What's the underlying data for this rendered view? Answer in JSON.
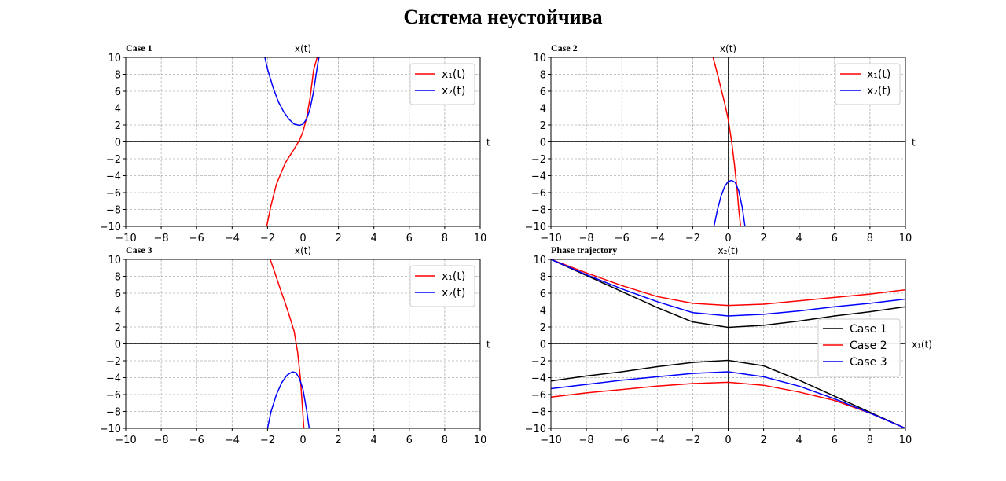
{
  "suptitle": "Система неустойчива",
  "chart_data": [
    {
      "type": "line",
      "title": "Case 1",
      "xlabel": "t",
      "ylabel": "x(t)",
      "xlim": [
        -10,
        10
      ],
      "ylim": [
        -10,
        10
      ],
      "xticks": [
        "−10",
        "−8",
        "−6",
        "−4",
        "−2",
        "0",
        "2",
        "4",
        "6",
        "8",
        "10"
      ],
      "yticks": [
        "−10",
        "−8",
        "−6",
        "−4",
        "−2",
        "0",
        "2",
        "4",
        "6",
        "8",
        "10"
      ],
      "grid": true,
      "legend_position": "top-right",
      "series": [
        {
          "name": "x₁(t)",
          "color": "#ff0000",
          "x": [
            -2.05,
            -1.8,
            -1.5,
            -1.2,
            -1.0,
            -0.8,
            -0.6,
            -0.4,
            -0.2,
            0,
            0.2,
            0.4,
            0.6,
            0.8
          ],
          "y": [
            -10,
            -7.5,
            -5.0,
            -3.5,
            -2.5,
            -1.8,
            -1.2,
            -0.5,
            0.2,
            1.2,
            2.8,
            5.2,
            8.5,
            10
          ]
        },
        {
          "name": "x₂(t)",
          "color": "#0000ff",
          "x": [
            -2.15,
            -2.0,
            -1.7,
            -1.4,
            -1.1,
            -0.8,
            -0.5,
            -0.2,
            0,
            0.2,
            0.4,
            0.6,
            0.8,
            0.9
          ],
          "y": [
            10,
            8.6,
            6.5,
            4.8,
            3.6,
            2.7,
            2.1,
            1.95,
            2.1,
            2.7,
            3.9,
            6.0,
            8.8,
            10
          ]
        }
      ]
    },
    {
      "type": "line",
      "title": "Case 2",
      "xlabel": "t",
      "ylabel": "x(t)",
      "xlim": [
        -10,
        10
      ],
      "ylim": [
        -10,
        10
      ],
      "xticks": [
        "−10",
        "−8",
        "−6",
        "−4",
        "−2",
        "0",
        "2",
        "4",
        "6",
        "8",
        "10"
      ],
      "yticks": [
        "−10",
        "−8",
        "−6",
        "−4",
        "−2",
        "0",
        "2",
        "4",
        "6",
        "8",
        "10"
      ],
      "grid": true,
      "legend_position": "top-right",
      "series": [
        {
          "name": "x₁(t)",
          "color": "#ff0000",
          "x": [
            -0.85,
            -0.6,
            -0.4,
            -0.2,
            0,
            0.2,
            0.35,
            0.5,
            0.6,
            0.7
          ],
          "y": [
            10,
            8.0,
            6.3,
            4.6,
            2.7,
            0.0,
            -2.6,
            -5.6,
            -8.0,
            -10
          ]
        },
        {
          "name": "x₂(t)",
          "color": "#0000ff",
          "x": [
            -0.8,
            -0.6,
            -0.4,
            -0.2,
            0,
            0.2,
            0.4,
            0.6,
            0.8,
            0.95
          ],
          "y": [
            -10,
            -8.0,
            -6.4,
            -5.3,
            -4.7,
            -4.55,
            -4.8,
            -5.8,
            -7.8,
            -10
          ]
        }
      ]
    },
    {
      "type": "line",
      "title": "Case 3",
      "xlabel": "t",
      "ylabel": "x(t)",
      "xlim": [
        -10,
        10
      ],
      "ylim": [
        -10,
        10
      ],
      "xticks": [
        "−10",
        "−8",
        "−6",
        "−4",
        "−2",
        "0",
        "2",
        "4",
        "6",
        "8",
        "10"
      ],
      "yticks": [
        "−10",
        "−8",
        "−6",
        "−4",
        "−2",
        "0",
        "2",
        "4",
        "6",
        "8",
        "10"
      ],
      "grid": true,
      "legend_position": "top-right",
      "series": [
        {
          "name": "x₁(t)",
          "color": "#ff0000",
          "x": [
            -1.85,
            -1.6,
            -1.3,
            -1.0,
            -0.75,
            -0.5,
            -0.3,
            -0.15,
            -0.05,
            0.05
          ],
          "y": [
            10,
            8.5,
            6.6,
            4.8,
            3.2,
            1.5,
            -1.0,
            -4.0,
            -7.0,
            -10
          ]
        },
        {
          "name": "x₂(t)",
          "color": "#0000ff",
          "x": [
            -2.0,
            -1.8,
            -1.5,
            -1.2,
            -0.9,
            -0.6,
            -0.4,
            -0.2,
            0,
            0.2,
            0.35
          ],
          "y": [
            -10,
            -8.0,
            -6.0,
            -4.6,
            -3.7,
            -3.3,
            -3.4,
            -4.1,
            -5.4,
            -7.8,
            -10
          ]
        }
      ]
    },
    {
      "type": "line",
      "title": "Phase trajectory",
      "xlabel": "x₁(t)",
      "ylabel": "x₂(t)",
      "xlim": [
        -10,
        10
      ],
      "ylim": [
        -10,
        10
      ],
      "xticks": [
        "−10",
        "−8",
        "−6",
        "−4",
        "−2",
        "0",
        "2",
        "4",
        "6",
        "8",
        "10"
      ],
      "yticks": [
        "−10",
        "−8",
        "−6",
        "−4",
        "−2",
        "0",
        "2",
        "4",
        "6",
        "8",
        "10"
      ],
      "grid": true,
      "legend_position": "center-right",
      "series": [
        {
          "name": "Case 1",
          "color": "#000000",
          "segments": [
            {
              "x": [
                -10,
                -8,
                -6,
                -4,
                -2,
                0,
                2,
                4,
                6,
                8,
                10
              ],
              "y": [
                10,
                8.1,
                6.2,
                4.3,
                2.6,
                1.95,
                2.2,
                2.7,
                3.3,
                3.8,
                4.4
              ]
            },
            {
              "x": [
                -10,
                -8,
                -6,
                -4,
                -2,
                0,
                2,
                4,
                6,
                8,
                10
              ],
              "y": [
                -4.4,
                -3.8,
                -3.3,
                -2.7,
                -2.2,
                -1.95,
                -2.6,
                -4.3,
                -6.2,
                -8.1,
                -10
              ]
            }
          ]
        },
        {
          "name": "Case 2",
          "color": "#ff0000",
          "segments": [
            {
              "x": [
                -10,
                -8,
                -6,
                -4,
                -2,
                0,
                2,
                4,
                6,
                8,
                10
              ],
              "y": [
                10,
                8.4,
                6.9,
                5.6,
                4.8,
                4.55,
                4.7,
                5.1,
                5.5,
                5.9,
                6.4
              ]
            },
            {
              "x": [
                -10,
                -8,
                -6,
                -4,
                -2,
                0,
                2,
                4,
                6,
                8,
                10
              ],
              "y": [
                -6.3,
                -5.8,
                -5.4,
                -5.0,
                -4.7,
                -4.55,
                -4.9,
                -5.7,
                -6.7,
                -8.2,
                -10
              ]
            }
          ]
        },
        {
          "name": "Case 3",
          "color": "#0000ff",
          "segments": [
            {
              "x": [
                -10,
                -8,
                -6,
                -4,
                -2,
                0,
                2,
                4,
                6,
                8,
                10
              ],
              "y": [
                10,
                8.2,
                6.5,
                5.0,
                3.7,
                3.3,
                3.5,
                3.9,
                4.4,
                4.8,
                5.3
              ]
            },
            {
              "x": [
                -10,
                -8,
                -6,
                -4,
                -2,
                0,
                2,
                4,
                6,
                8,
                10
              ],
              "y": [
                -5.3,
                -4.8,
                -4.3,
                -3.9,
                -3.5,
                -3.3,
                -3.9,
                -5.0,
                -6.5,
                -8.2,
                -10
              ]
            }
          ]
        }
      ]
    }
  ]
}
